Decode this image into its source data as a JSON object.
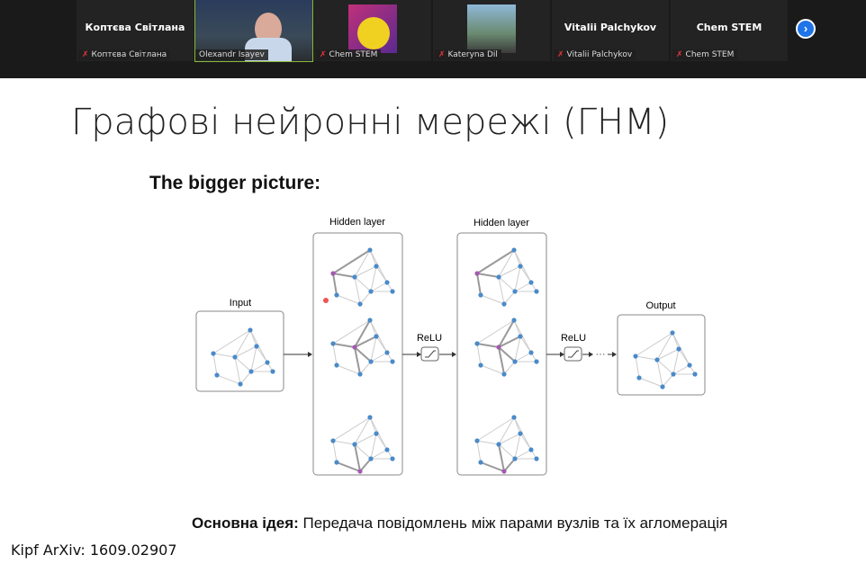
{
  "participants": [
    {
      "display": "Коптєва Світлана",
      "label": "Коптєва Світлана",
      "muted": true,
      "video": false
    },
    {
      "display": "",
      "label": "Olexandr Isayev",
      "muted": false,
      "video": true,
      "active": true
    },
    {
      "display": "",
      "label": "Chem STEM",
      "muted": true,
      "video": true
    },
    {
      "display": "",
      "label": "Kateryna Dil",
      "muted": true,
      "video": true
    },
    {
      "display": "Vitalii Palchykov",
      "label": "Vitalii Palchykov",
      "muted": true,
      "video": false
    },
    {
      "display": "Chem STEM",
      "label": "Chem STEM",
      "muted": true,
      "video": false
    }
  ],
  "next_icon": "chevron-right-icon",
  "slide": {
    "title": "Графові нейронні мережі (ГНМ)",
    "subtitle": "The bigger picture:",
    "diagram": {
      "input": "Input",
      "hidden1": "Hidden layer",
      "hidden2": "Hidden layer",
      "relu1": "ReLU",
      "relu2": "ReLU",
      "output": "Output",
      "ellipsis": "...",
      "dots": "···"
    },
    "idea_bold": "Основна ідея:",
    "idea_text": " Передача повідомлень між парами вузлів та їх агломерація",
    "citation": "Kipf ArXiv: 1609.02907"
  },
  "colors": {
    "node": "#4a8ac9",
    "highlight": "#a45ab0",
    "accent": "#1f74e8"
  }
}
